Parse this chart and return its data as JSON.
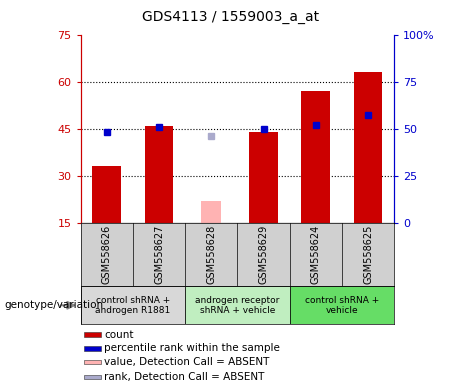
{
  "title": "GDS4113 / 1559003_a_at",
  "samples": [
    "GSM558626",
    "GSM558627",
    "GSM558628",
    "GSM558629",
    "GSM558624",
    "GSM558625"
  ],
  "count_values": [
    33,
    46,
    null,
    44,
    57,
    63
  ],
  "count_absent": [
    null,
    null,
    22,
    null,
    null,
    null
  ],
  "rank_values": [
    48,
    51,
    null,
    50,
    52,
    57
  ],
  "rank_absent": [
    null,
    null,
    46,
    null,
    null,
    null
  ],
  "ylim_left": [
    15,
    75
  ],
  "ylim_right": [
    0,
    100
  ],
  "yticks_left": [
    15,
    30,
    45,
    60,
    75
  ],
  "yticks_right": [
    0,
    25,
    50,
    75,
    100
  ],
  "ytick_labels_right": [
    "0",
    "25",
    "50",
    "75",
    "100%"
  ],
  "bar_color": "#cc0000",
  "bar_absent_color": "#ffb3b3",
  "rank_color": "#0000cc",
  "rank_absent_color": "#aaaacc",
  "groups": [
    {
      "label": "control shRNA +\nandrogen R1881",
      "cols": [
        0,
        1
      ],
      "color": "#d8d8d8"
    },
    {
      "label": "androgen receptor\nshRNA + vehicle",
      "cols": [
        2,
        3
      ],
      "color": "#c0eec0"
    },
    {
      "label": "control shRNA +\nvehicle",
      "cols": [
        4,
        5
      ],
      "color": "#66dd66"
    }
  ],
  "legend_items": [
    {
      "label": "count",
      "color": "#cc0000"
    },
    {
      "label": "percentile rank within the sample",
      "color": "#0000cc"
    },
    {
      "label": "value, Detection Call = ABSENT",
      "color": "#ffb3b3"
    },
    {
      "label": "rank, Detection Call = ABSENT",
      "color": "#aaaacc"
    }
  ],
  "genotype_label": "genotype/variation",
  "bar_width": 0.55,
  "rank_marker_size": 5,
  "background_color": "#ffffff",
  "plot_bg_color": "#ffffff",
  "sample_label_bg": "#d0d0d0",
  "grid_color": "#000000"
}
